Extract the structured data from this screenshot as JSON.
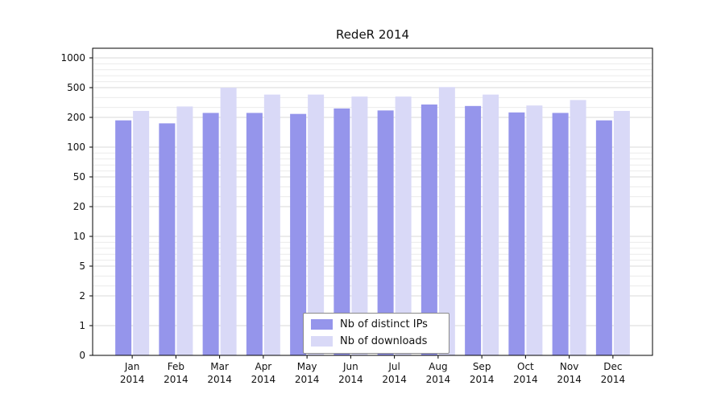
{
  "chart_data": {
    "type": "bar",
    "title": "RedeR 2014",
    "categories": [
      "Jan 2014",
      "Feb 2014",
      "Mar 2014",
      "Apr 2014",
      "May 2014",
      "Jun 2014",
      "Jul 2014",
      "Aug 2014",
      "Sep 2014",
      "Oct 2014",
      "Nov 2014",
      "Dec 2014"
    ],
    "series": [
      {
        "name": "Nb of distinct IPs",
        "color": "#9595eb",
        "values": [
          190,
          180,
          245,
          245,
          235,
          290,
          270,
          330,
          315,
          250,
          245,
          190
        ]
      },
      {
        "name": "Nb of downloads",
        "color": "#d9d9f7",
        "values": [
          265,
          310,
          500,
          430,
          430,
          410,
          410,
          510,
          430,
          320,
          375,
          265
        ]
      }
    ],
    "y_ticks": [
      0,
      1,
      2,
      5,
      10,
      20,
      50,
      100,
      200,
      500,
      1000
    ],
    "y_minor_gridlines": [
      3,
      4,
      6,
      7,
      8,
      9,
      30,
      40,
      60,
      70,
      80,
      90,
      300,
      400,
      600,
      700,
      800,
      900
    ],
    "axis_scale": "log-like, labeled ticks equally spaced",
    "ylim": [
      0,
      1000
    ],
    "grid": true,
    "legend_position": "bottom-center",
    "colors": {
      "grid_major": "#d9d9d9",
      "grid_minor": "#ebebeb",
      "axis": "#000000",
      "text": "#111111",
      "background": "#ffffff"
    }
  }
}
